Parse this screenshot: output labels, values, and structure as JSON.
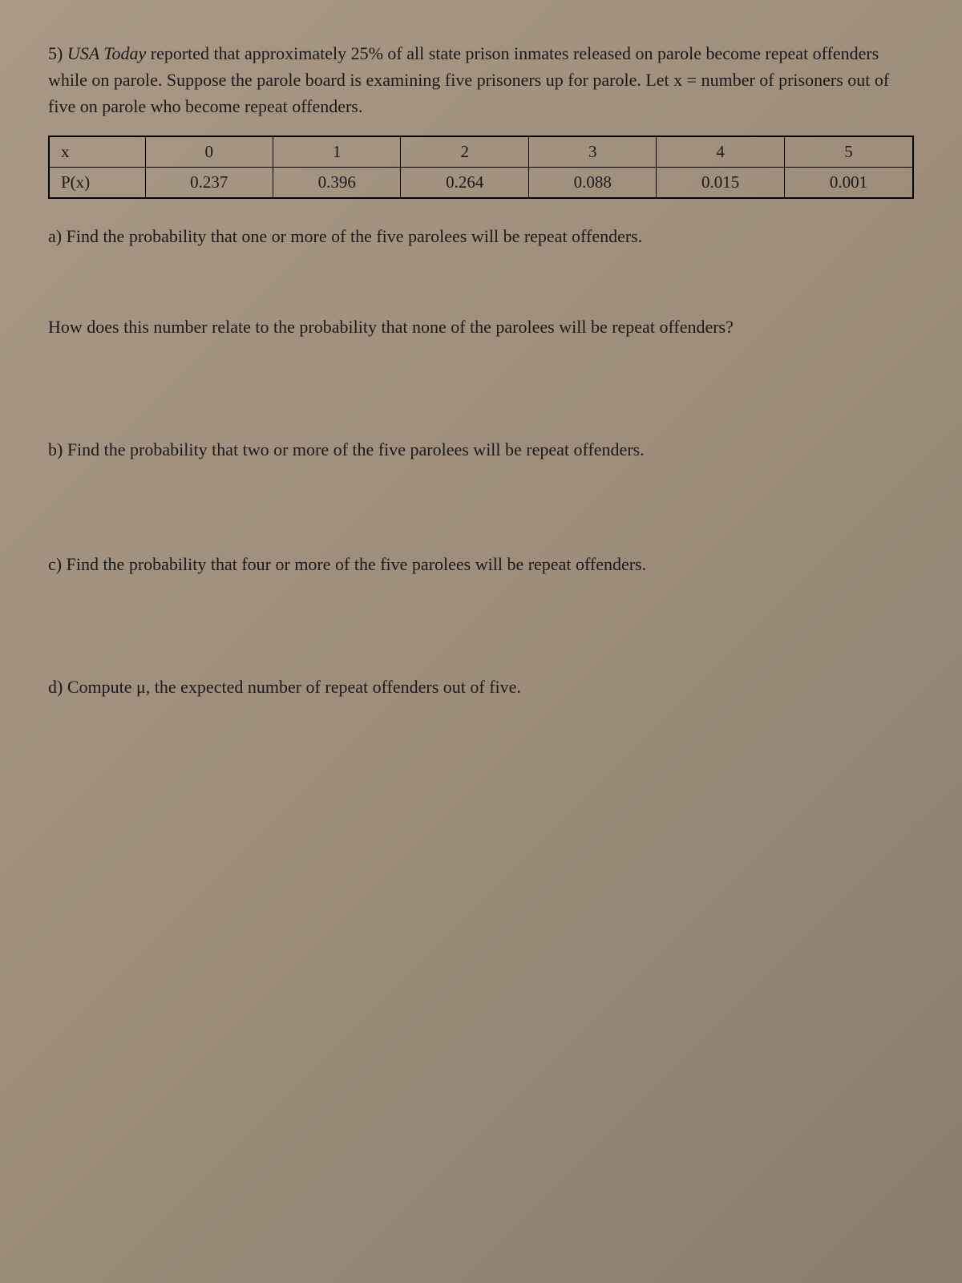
{
  "problem": {
    "number": "5)",
    "source_italic": "USA Today",
    "intro": " reported that approximately 25% of all state prison inmates released on parole become repeat offenders while on parole.  Suppose the parole board is examining five prisoners up for parole.  Let x = number of prisoners out of five on parole who become repeat offenders."
  },
  "table": {
    "row1_label": "x",
    "row2_label": "P(x)",
    "x": [
      "0",
      "1",
      "2",
      "3",
      "4",
      "5"
    ],
    "p": [
      "0.237",
      "0.396",
      "0.264",
      "0.088",
      "0.015",
      "0.001"
    ]
  },
  "questions": {
    "a": "a) Find the probability that one or more of the five parolees will be repeat offenders.",
    "a_sub": "How does this number relate to the probability that none of the parolees will be repeat offenders?",
    "b": "b) Find the probability that two or more of the five parolees will be repeat offenders.",
    "c": "c) Find the probability that four or more of the five parolees will be repeat offenders.",
    "d": "d) Compute μ, the expected number of repeat offenders out of five."
  },
  "colors": {
    "text": "#1a1a1a",
    "border": "#000000",
    "background": "#a89885"
  }
}
